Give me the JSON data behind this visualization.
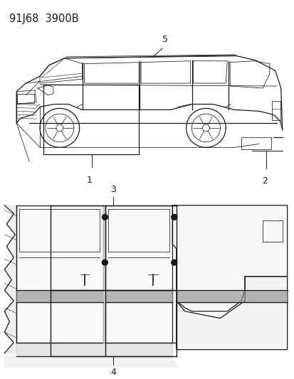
{
  "title_code": "91J68  3900B",
  "background_color": "#ffffff",
  "line_color": "#1a1a1a",
  "fig_width": 4.14,
  "fig_height": 5.33,
  "dpi": 100,
  "top_car": {
    "ox": 0.02,
    "oy": 0.535,
    "sx": 0.96,
    "sy": 0.38
  },
  "bot_diagram": {
    "ox": 0.02,
    "oy": 0.07,
    "sx": 0.96,
    "sy": 0.41
  }
}
